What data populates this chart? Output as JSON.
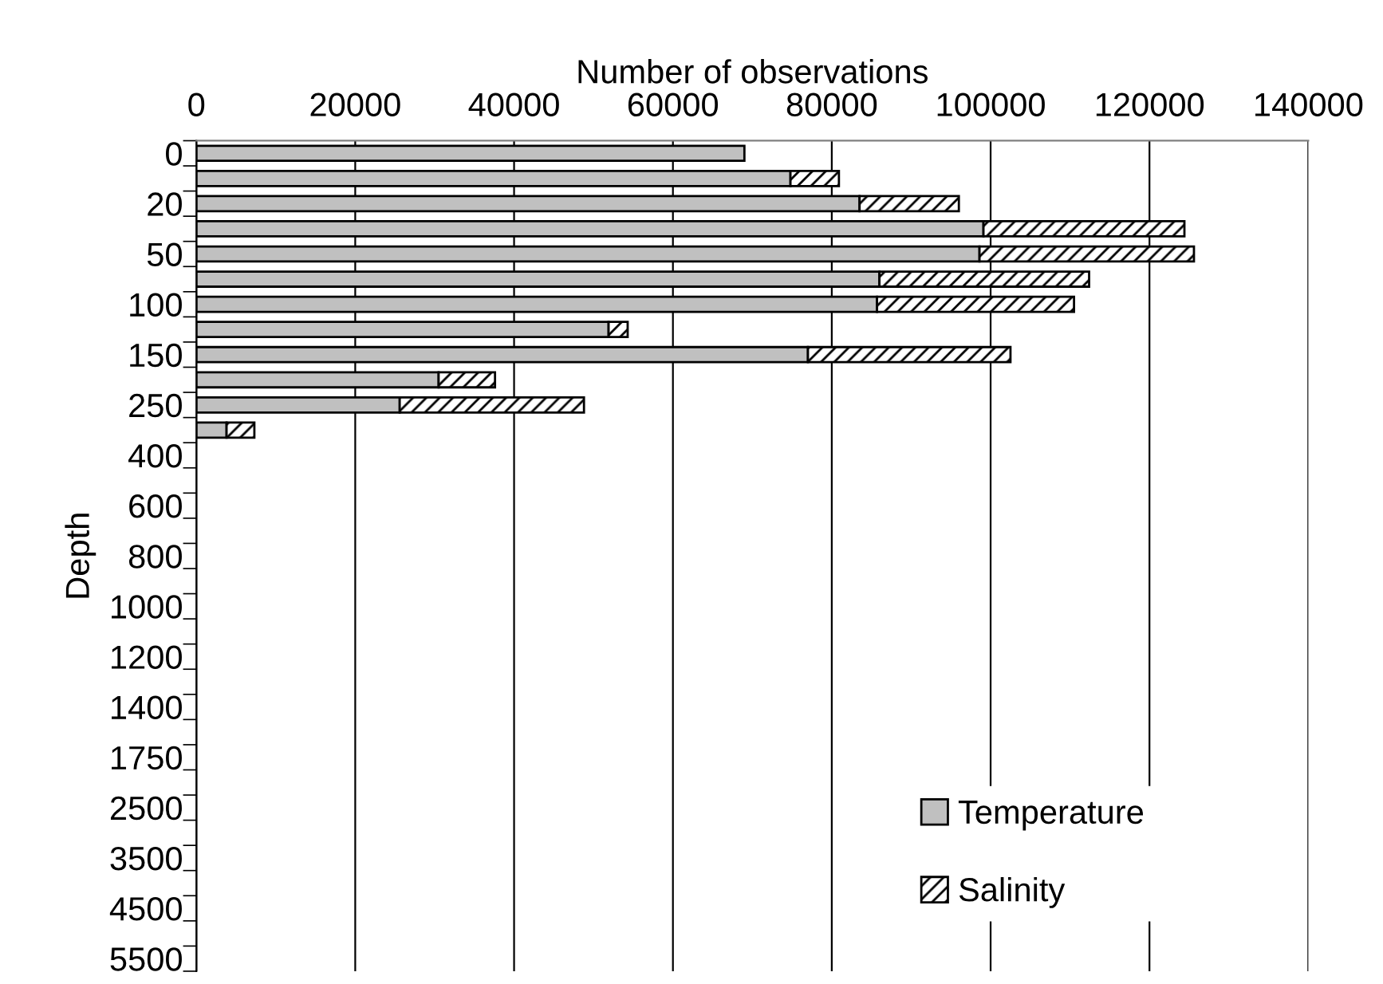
{
  "chart_data": {
    "type": "bar",
    "orientation": "horizontal",
    "stacked": true,
    "xlabel": "Number of observations",
    "ylabel": "Depth",
    "categories": [
      "0",
      null,
      "20",
      null,
      "50",
      null,
      "100",
      null,
      "150",
      null,
      "250",
      null,
      "400",
      null,
      "600",
      null,
      "800",
      null,
      "1000",
      null,
      "1200",
      null,
      "1400",
      null,
      "1750",
      null,
      "2500",
      null,
      "3500",
      null,
      "4500",
      null,
      "5500"
    ],
    "series": [
      {
        "name": "Temperature",
        "color": "#c0c0c0",
        "values": [
          69000,
          74800,
          83500,
          99100,
          98600,
          86000,
          85700,
          51900,
          77000,
          30500,
          25600,
          3800,
          null,
          null,
          null,
          null,
          null,
          null,
          null,
          null,
          null,
          null,
          null,
          null,
          null,
          null,
          null,
          null,
          null,
          null,
          null,
          null,
          null
        ]
      },
      {
        "name": "Salinity",
        "color": "#000000",
        "values": [
          null,
          6100,
          12500,
          25300,
          27000,
          26400,
          24800,
          2400,
          25500,
          7100,
          23200,
          3500,
          null,
          null,
          null,
          null,
          null,
          null,
          null,
          null,
          null,
          null,
          null,
          null,
          null,
          null,
          null,
          null,
          null,
          null,
          null,
          null,
          null
        ]
      }
    ],
    "xlim": [
      0,
      140000
    ],
    "xticks": [
      0,
      20000,
      40000,
      60000,
      80000,
      100000,
      120000,
      140000
    ],
    "grid": "x",
    "legend": "bottom right"
  }
}
